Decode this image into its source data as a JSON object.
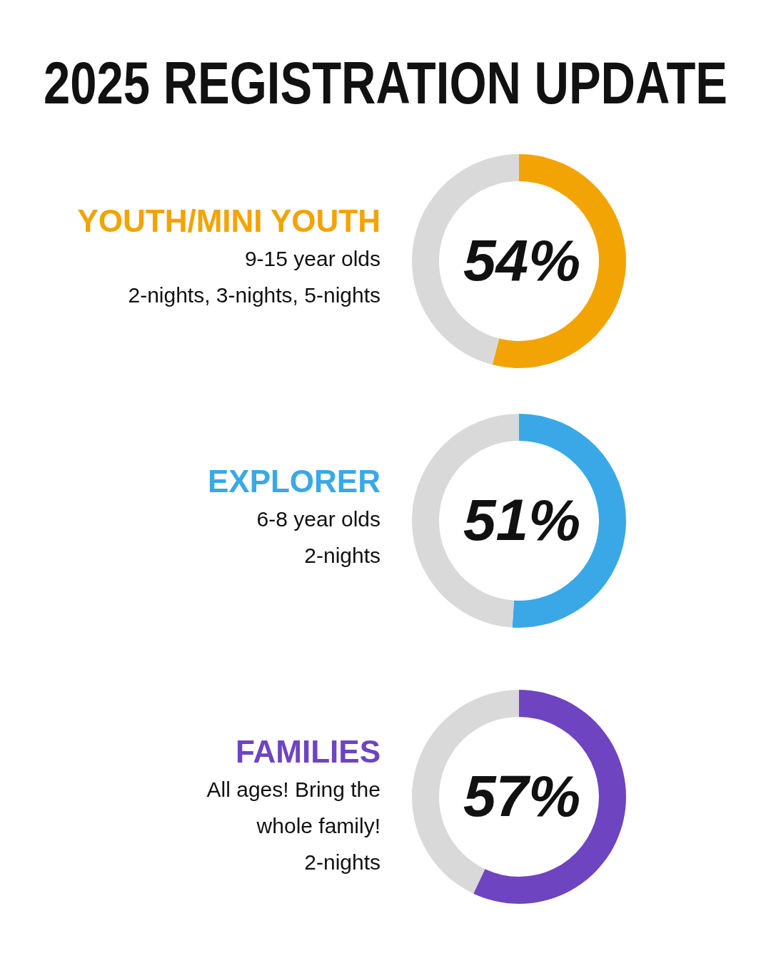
{
  "chart_data": [
    {
      "type": "other",
      "title": "2025 REGISTRATION UPDATE"
    },
    {
      "type": "donut",
      "title": "YOUTH/MINI YOUTH",
      "subtitle": "9-15 year olds",
      "annotations": [
        "2-nights, 3-nights, 5-nights"
      ],
      "categories": [
        null,
        null
      ],
      "values": [
        54,
        46
      ],
      "colors": [
        "#f2a404",
        "#d9d9d9"
      ],
      "value_labels": [
        "54%",
        null
      ]
    },
    {
      "type": "donut",
      "title": "EXPLORER",
      "subtitle": "6-8 year olds",
      "annotations": [
        "2-nights"
      ],
      "categories": [
        null,
        null
      ],
      "values": [
        51,
        49
      ],
      "colors": [
        "#3aa8e6",
        "#d9d9d9"
      ],
      "value_labels": [
        "51%",
        null
      ]
    },
    {
      "type": "donut",
      "title": "FAMILIES",
      "subtitle": "All ages! Bring the\nwhole family!",
      "annotations": [
        "2-nights"
      ],
      "categories": [
        null,
        null
      ],
      "values": [
        57,
        43
      ],
      "colors": [
        "#6e44c1",
        "#d9d9d9"
      ],
      "value_labels": [
        "57%",
        null
      ]
    }
  ]
}
